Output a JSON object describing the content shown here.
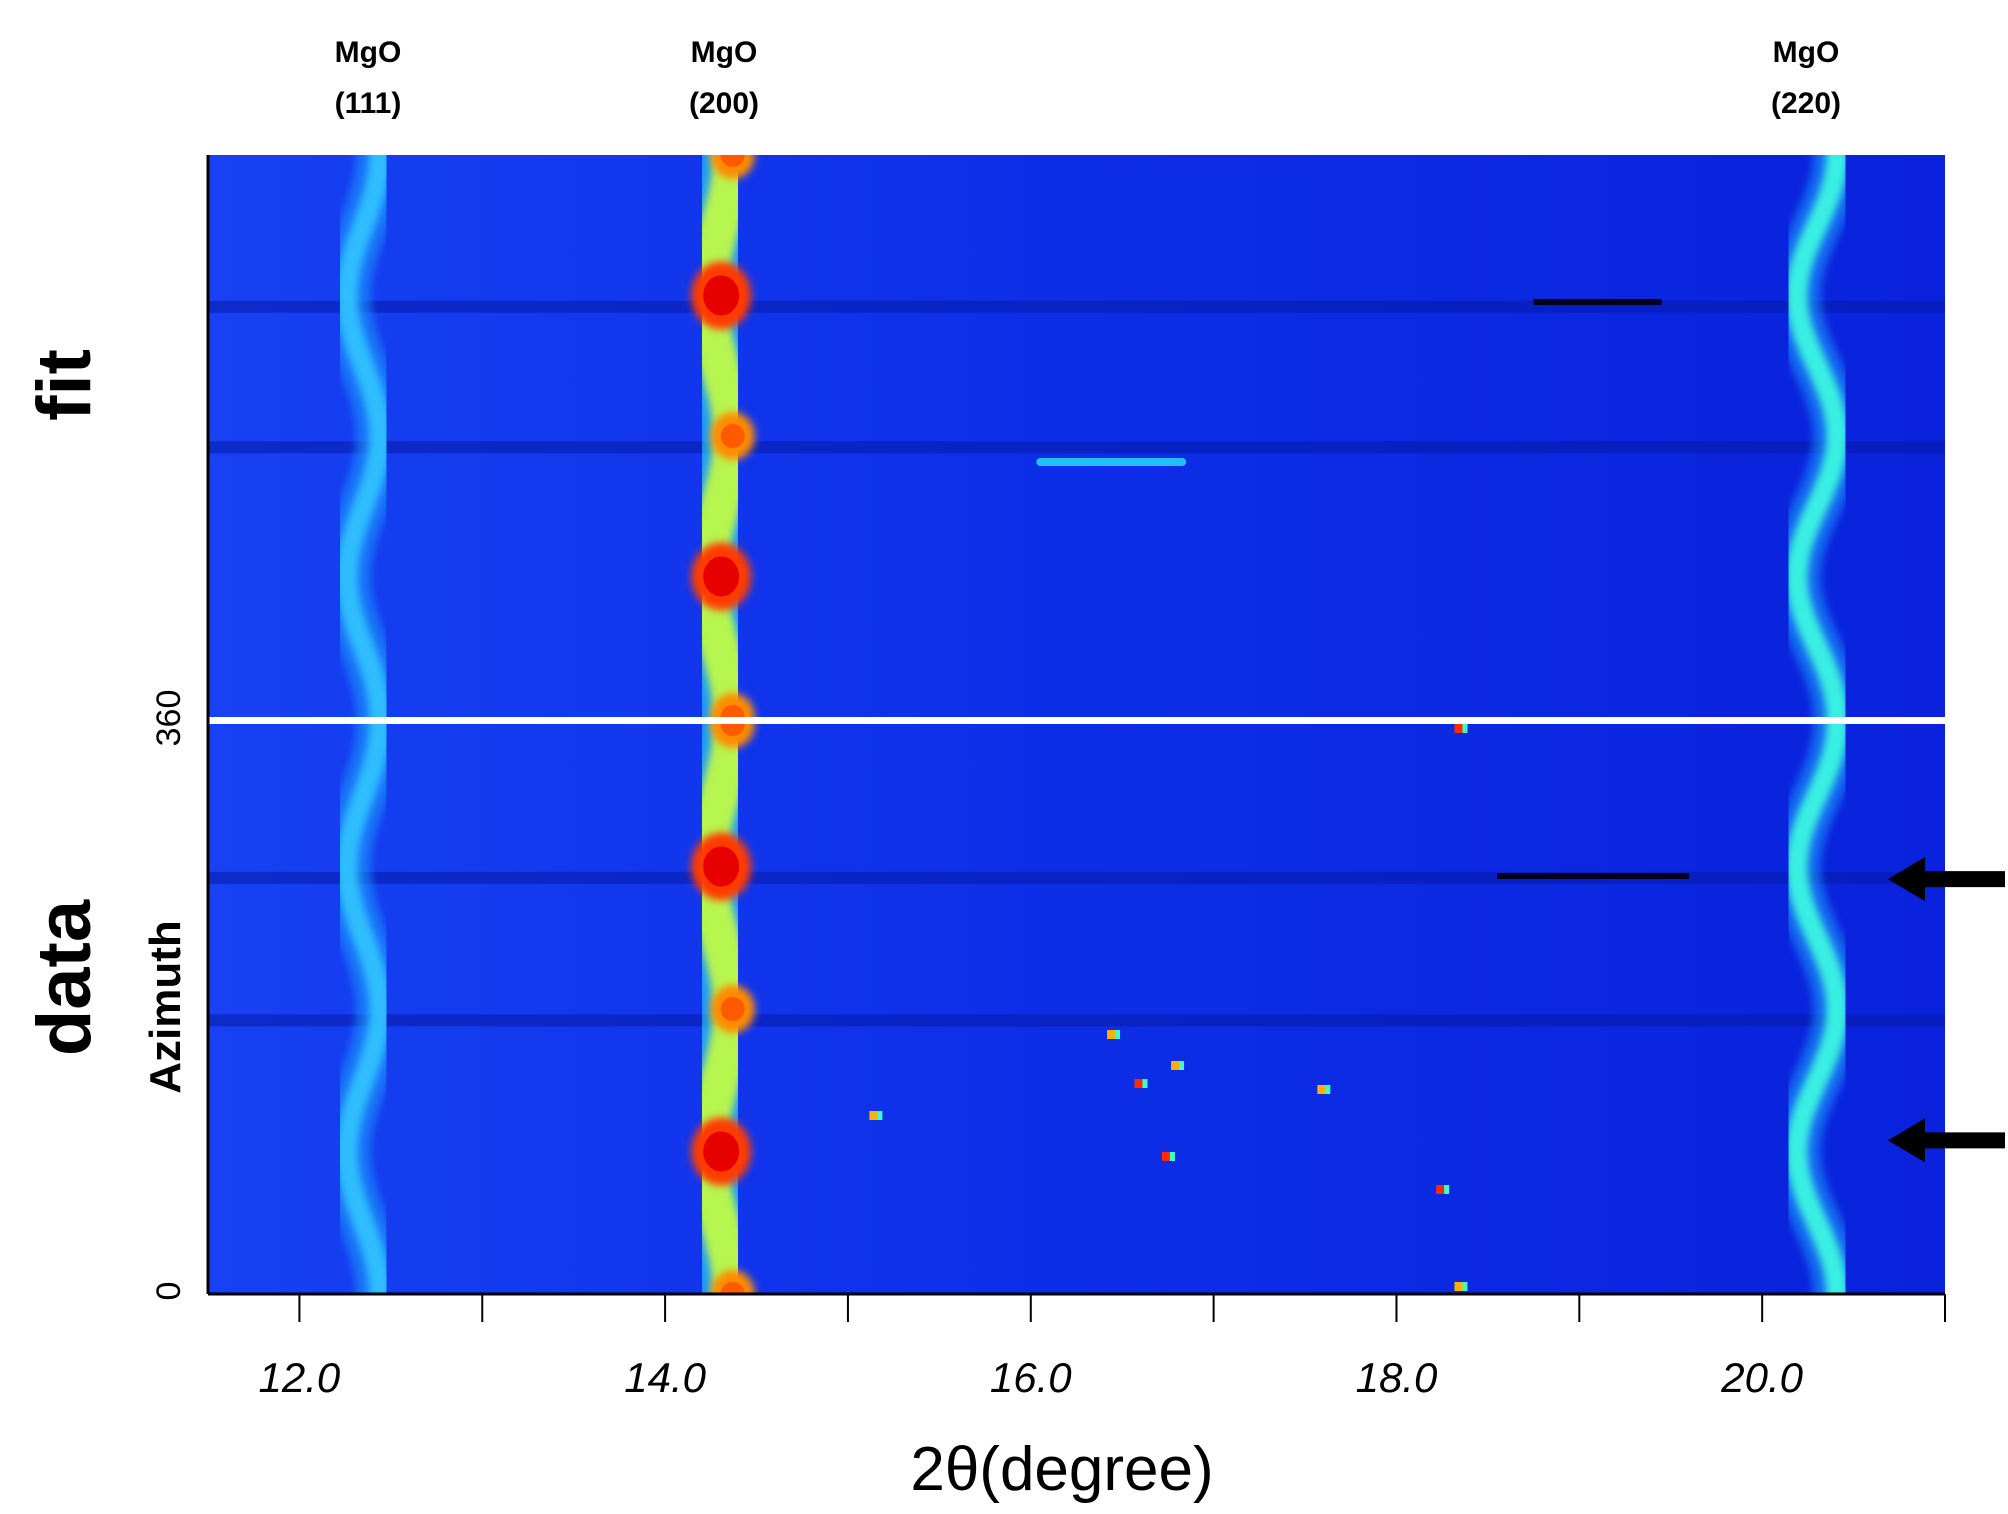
{
  "chart_data": {
    "type": "heatmap",
    "title": "",
    "xlabel": "2θ(degree)",
    "ylabel": "Azimuth",
    "xlim": [
      11.5,
      21.0
    ],
    "ylim": [
      0,
      360
    ],
    "x_ticks": [
      12.0,
      13.0,
      14.0,
      15.0,
      16.0,
      17.0,
      18.0,
      19.0,
      20.0,
      21.0
    ],
    "x_tick_labels": [
      "12.0",
      "14.0",
      "16.0",
      "18.0",
      "20.0"
    ],
    "y_tick_labels": [
      "0",
      "360"
    ],
    "panels": [
      {
        "name": "fit",
        "label": "fit"
      },
      {
        "name": "data",
        "label": "data"
      }
    ],
    "peaks": [
      {
        "phase": "MgO",
        "hkl": "(111)",
        "two_theta": 12.35,
        "oscillation": 0.09,
        "intensity": 0.45
      },
      {
        "phase": "MgO",
        "hkl": "(200)",
        "two_theta": 14.3,
        "oscillation": 0.07,
        "intensity": 1.0
      },
      {
        "phase": "MgO",
        "hkl": "(220)",
        "two_theta": 20.3,
        "oscillation": 0.11,
        "intensity": 0.55
      }
    ],
    "colormap": [
      "#00008b",
      "#0000ff",
      "#1a6dff",
      "#00d4ff",
      "#3cffc8",
      "#c8ff3c",
      "#ffd400",
      "#ff6a00",
      "#e60000"
    ],
    "annotation_arrows_azimuth": [
      262,
      97
    ]
  }
}
